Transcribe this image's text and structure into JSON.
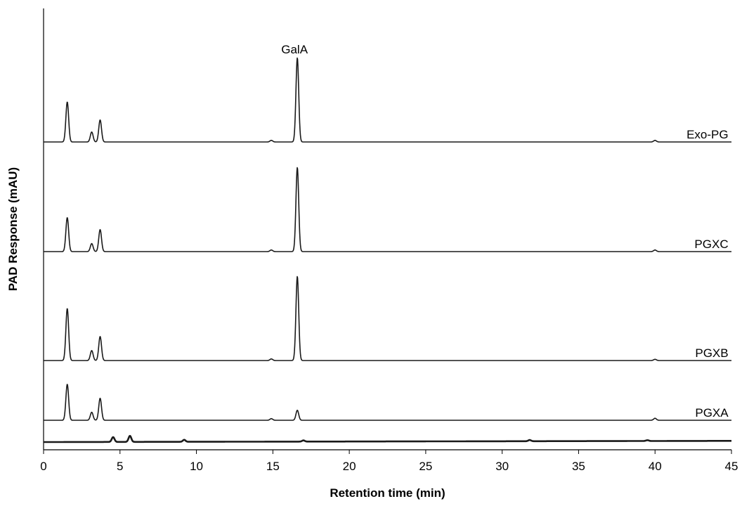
{
  "chart_data": {
    "type": "line",
    "xlabel": "Retention time (min)",
    "ylabel": "PAD Response (mAU)",
    "xlim": [
      0,
      45
    ],
    "xticks": [
      0,
      5,
      10,
      15,
      20,
      25,
      30,
      35,
      40,
      45
    ],
    "y_ticks_shown": false,
    "grid": false,
    "annotations": [
      {
        "text": "GalA",
        "x": 16.6
      }
    ],
    "series": [
      {
        "name": "Exo-PG",
        "baseline": 4,
        "label_x": 42.5,
        "peaks": [
          {
            "x": 1.55,
            "height": 1.0
          },
          {
            "x": 3.15,
            "height": 0.25
          },
          {
            "x": 3.7,
            "height": 0.55
          },
          {
            "x": 14.9,
            "height": 0.04
          },
          {
            "x": 16.6,
            "height": 2.1
          },
          {
            "x": 40.0,
            "height": 0.04
          }
        ]
      },
      {
        "name": "PGXC",
        "baseline": 3,
        "label_x": 42.5,
        "peaks": [
          {
            "x": 1.55,
            "height": 0.85
          },
          {
            "x": 3.15,
            "height": 0.2
          },
          {
            "x": 3.7,
            "height": 0.55
          },
          {
            "x": 14.9,
            "height": 0.04
          },
          {
            "x": 16.6,
            "height": 2.1
          },
          {
            "x": 40.0,
            "height": 0.04
          }
        ]
      },
      {
        "name": "PGXB",
        "baseline": 2,
        "label_x": 42.5,
        "peaks": [
          {
            "x": 1.55,
            "height": 1.3
          },
          {
            "x": 3.15,
            "height": 0.25
          },
          {
            "x": 3.7,
            "height": 0.6
          },
          {
            "x": 14.9,
            "height": 0.04
          },
          {
            "x": 16.6,
            "height": 2.1
          },
          {
            "x": 40.0,
            "height": 0.03
          }
        ]
      },
      {
        "name": "PGXA",
        "baseline": 1,
        "label_x": 42.5,
        "peaks": [
          {
            "x": 1.55,
            "height": 0.9
          },
          {
            "x": 3.15,
            "height": 0.2
          },
          {
            "x": 3.7,
            "height": 0.55
          },
          {
            "x": 14.9,
            "height": 0.04
          },
          {
            "x": 16.6,
            "height": 0.25
          },
          {
            "x": 40.0,
            "height": 0.05
          }
        ]
      },
      {
        "name": "",
        "baseline": 0,
        "thick": true,
        "drift": 0.03,
        "peaks": [
          {
            "x": 4.55,
            "height": 0.12
          },
          {
            "x": 5.65,
            "height": 0.15
          },
          {
            "x": 9.2,
            "height": 0.05
          },
          {
            "x": 17.0,
            "height": 0.03
          },
          {
            "x": 31.8,
            "height": 0.03
          },
          {
            "x": 39.5,
            "height": 0.02
          }
        ]
      }
    ]
  }
}
